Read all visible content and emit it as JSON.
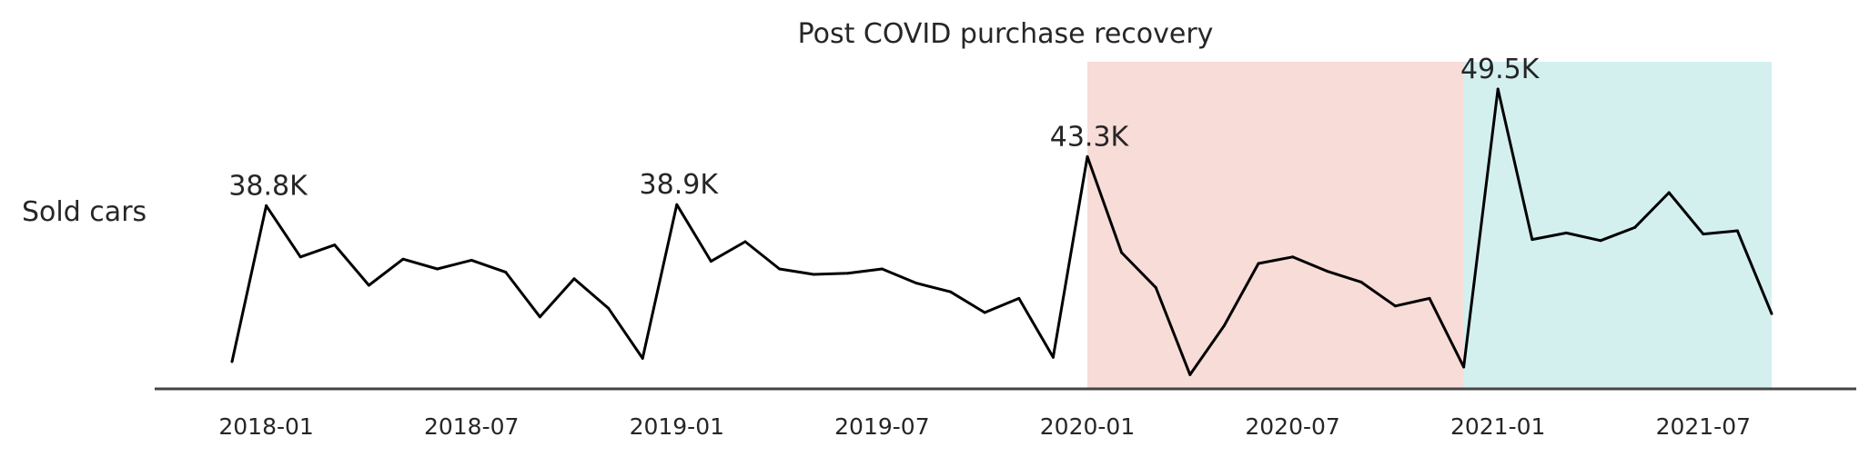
{
  "chart_data": {
    "type": "line",
    "title": "Post COVID purchase recovery",
    "ylabel": "Sold cars",
    "xlabel": "",
    "x_ticks": [
      "2018-01",
      "2018-07",
      "2019-01",
      "2019-07",
      "2020-01",
      "2020-07",
      "2021-01",
      "2021-07"
    ],
    "x": [
      "2017-12",
      "2018-01",
      "2018-02",
      "2018-03",
      "2018-04",
      "2018-05",
      "2018-06",
      "2018-07",
      "2018-08",
      "2018-09",
      "2018-10",
      "2018-11",
      "2018-12",
      "2019-01",
      "2019-02",
      "2019-03",
      "2019-04",
      "2019-05",
      "2019-06",
      "2019-07",
      "2019-08",
      "2019-09",
      "2019-10",
      "2019-11",
      "2019-12",
      "2020-01",
      "2020-02",
      "2020-03",
      "2020-04",
      "2020-05",
      "2020-06",
      "2020-07",
      "2020-08",
      "2020-09",
      "2020-10",
      "2020-11",
      "2020-12",
      "2021-01",
      "2021-02",
      "2021-03",
      "2021-04",
      "2021-05",
      "2021-06",
      "2021-07",
      "2021-08",
      "2021-09"
    ],
    "series": [
      {
        "values": [
          24500,
          38800,
          34100,
          35200,
          31500,
          33900,
          33000,
          33800,
          32700,
          28600,
          32100,
          29400,
          24800,
          38900,
          33700,
          35500,
          33000,
          32500,
          32600,
          33000,
          31700,
          30900,
          29000,
          30300,
          24900,
          43300,
          34500,
          31300,
          23300,
          27800,
          33500,
          34100,
          32800,
          31800,
          29600,
          30300,
          24000,
          49500,
          35700,
          36300,
          35600,
          36800,
          40000,
          36200,
          36500,
          28900
        ]
      }
    ],
    "peak_labels": [
      {
        "x": "2018-01",
        "label": "38.8K"
      },
      {
        "x": "2019-01",
        "label": "38.9K"
      },
      {
        "x": "2020-01",
        "label": "43.3K"
      },
      {
        "x": "2021-01",
        "label": "49.5K"
      }
    ],
    "shaded_regions": [
      {
        "x_start": "2020-01",
        "x_end": "2020-12",
        "color": "#f7dcd8"
      },
      {
        "x_start": "2020-12",
        "x_end": "2021-09",
        "color": "#d3f0ef"
      }
    ],
    "ylim": [
      22000,
      52000
    ],
    "grid": false,
    "legend": "none",
    "line_color": "#000000",
    "axis_color": "#444444"
  }
}
